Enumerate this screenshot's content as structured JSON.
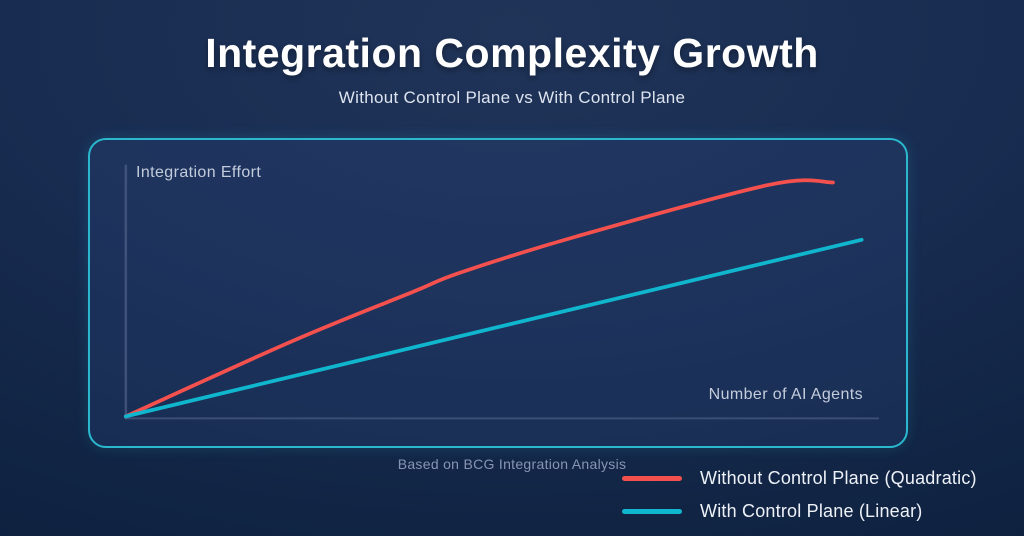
{
  "header": {
    "title": "Integration Complexity Growth",
    "subtitle": "Without Control Plane vs With Control Plane"
  },
  "caption": "Based on BCG Integration Analysis",
  "colors": {
    "panel_border": "#2ab8ce",
    "axis_line": "#4a5d84",
    "series_red": "#f4514e",
    "series_teal": "#10b6ce",
    "background_dark": "#0a1c38",
    "background_light": "#203459"
  },
  "chart_data": {
    "type": "line",
    "title": "Integration Complexity Growth",
    "subtitle": "Without Control Plane vs With Control Plane",
    "xlabel": "Number of AI Agents",
    "ylabel": "Integration Effort",
    "x_axis": {
      "min": 0,
      "max": 100,
      "tick_labels": "none"
    },
    "y_axis": {
      "min": 0,
      "max": 100,
      "tick_labels": "none"
    },
    "grid": false,
    "legend_position": "bottom-right",
    "source_note": "Based on BCG Integration Analysis",
    "series": [
      {
        "name": "Without Control Plane (Quadratic)",
        "color": "#f4514e",
        "curve": "smooth",
        "x": [
          0,
          22,
          38,
          44.5,
          60,
          85.5,
          94
        ],
        "y": [
          0,
          32,
          53,
          61.5,
          77,
          99,
          100
        ]
      },
      {
        "name": "With Control Plane (Linear)",
        "color": "#10b6ce",
        "curve": "straight",
        "x": [
          0,
          97.8
        ],
        "y": [
          0,
          75.5
        ]
      }
    ]
  }
}
